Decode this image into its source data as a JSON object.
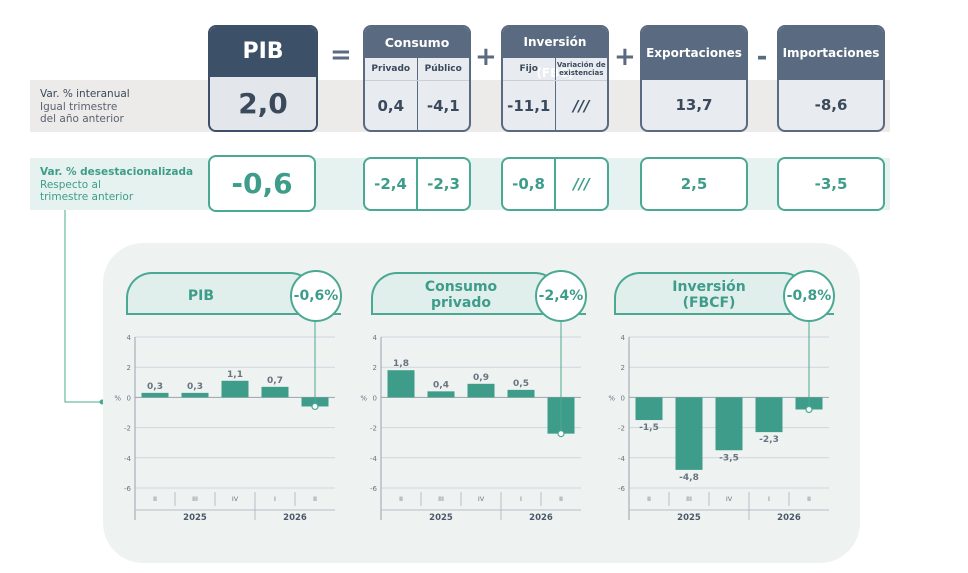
{
  "header": {
    "pib": "PIB",
    "op_equals": "=",
    "consumo": {
      "title": "Consumo",
      "sub1": "Privado",
      "sub2": "Público"
    },
    "op_plus1": "+",
    "inversion": {
      "title": "Inversión (FBC)",
      "sub1": "Fijo",
      "sub2": "Variación de existencias"
    },
    "op_plus2": "+",
    "exportaciones": "Exportaciones",
    "op_minus": "-",
    "importaciones": "Importaciones"
  },
  "row_interanual": {
    "label1": "Var. % interanual",
    "label2": "Igual trimestre",
    "label3": "del año anterior",
    "pib": "2,0",
    "consumo_privado": "0,4",
    "consumo_publico": "-4,1",
    "inversion_fijo": "-11,1",
    "inversion_existencias": "///",
    "exportaciones": "13,7",
    "importaciones": "-8,6"
  },
  "row_desestacionalizada": {
    "label1": "Var. % desestacionalizada",
    "label2": "Respecto al",
    "label3": "trimestre anterior",
    "pib": "-0,6",
    "consumo_privado": "-2,4",
    "consumo_publico": "-2,3",
    "inversion_fijo": "-0,8",
    "inversion_existencias": "///",
    "exportaciones": "2,5",
    "importaciones": "-3,5"
  },
  "colors": {
    "navy": "#3c5068",
    "slate": "#5a6a80",
    "teal": "#3e9c8a",
    "bar_teal": "#3e9c8a",
    "panel_bg": "#eef3f2"
  },
  "chart_data": [
    {
      "type": "bar",
      "title": "PIB",
      "badge": "-0,6%",
      "categories": [
        "II",
        "III",
        "IV",
        "I",
        "II"
      ],
      "years": [
        "2025",
        "2026"
      ],
      "values": [
        0.3,
        0.3,
        1.1,
        0.7,
        -0.6
      ],
      "labels": [
        "0,3",
        "0,3",
        "1,1",
        "0,7",
        ""
      ],
      "highlight_index": 4,
      "ylabel": "%",
      "yticks": [
        "4",
        "2",
        "0",
        "-2",
        "-4",
        "-6"
      ],
      "ylim": [
        -6,
        4
      ],
      "grid": true
    },
    {
      "type": "bar",
      "title": "Consumo privado",
      "badge": "-2,4%",
      "categories": [
        "II",
        "III",
        "IV",
        "I",
        "II"
      ],
      "years": [
        "2025",
        "2026"
      ],
      "values": [
        1.8,
        0.4,
        0.9,
        0.5,
        -2.4
      ],
      "labels": [
        "1,8",
        "0,4",
        "0,9",
        "0,5",
        ""
      ],
      "highlight_index": 4,
      "ylabel": "%",
      "yticks": [
        "4",
        "2",
        "0",
        "-2",
        "-4",
        "-6"
      ],
      "ylim": [
        -6,
        4
      ],
      "grid": true
    },
    {
      "type": "bar",
      "title": "Inversión (FBCF)",
      "badge": "-0,8%",
      "categories": [
        "II",
        "III",
        "IV",
        "I",
        "II"
      ],
      "years": [
        "2025",
        "2026"
      ],
      "values": [
        -1.5,
        -4.8,
        -3.5,
        -2.3,
        -0.8
      ],
      "labels": [
        "-1,5",
        "-4,8",
        "-3,5",
        "-2,3",
        ""
      ],
      "highlight_index": 4,
      "ylabel": "%",
      "yticks": [
        "4",
        "2",
        "0",
        "-2",
        "-4",
        "-6"
      ],
      "ylim": [
        -6,
        4
      ],
      "grid": true
    }
  ]
}
